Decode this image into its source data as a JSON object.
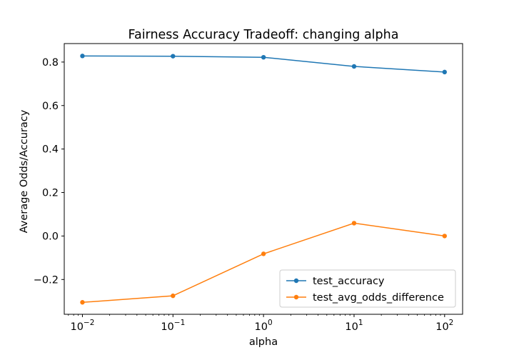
{
  "chart_data": {
    "type": "line",
    "title": "Fairness Accuracy Tradeoff: changing alpha",
    "xlabel": "alpha",
    "ylabel": "Average Odds/Accuracy",
    "x_scale": "log",
    "x": [
      0.01,
      0.1,
      1,
      10,
      100
    ],
    "x_tick_labels": [
      {
        "base": "10",
        "exp": "−2"
      },
      {
        "base": "10",
        "exp": "−1"
      },
      {
        "base": "10",
        "exp": "0"
      },
      {
        "base": "10",
        "exp": "1"
      },
      {
        "base": "10",
        "exp": "2"
      }
    ],
    "xlim": [
      0.0063,
      158
    ],
    "y_ticks": [
      -0.2,
      0.0,
      0.2,
      0.4,
      0.6,
      0.8
    ],
    "y_tick_labels": [
      "−0.2",
      "0.0",
      "0.2",
      "0.4",
      "0.6",
      "0.8"
    ],
    "ylim": [
      -0.36,
      0.885
    ],
    "grid": false,
    "legend_position": "lower-right",
    "series": [
      {
        "name": "test_accuracy",
        "color": "#1f77b4",
        "values": [
          0.828,
          0.827,
          0.822,
          0.78,
          0.754
        ]
      },
      {
        "name": "test_avg_odds_difference",
        "color": "#ff7f0e",
        "values": [
          -0.305,
          -0.275,
          -0.082,
          0.059,
          0.0
        ]
      }
    ]
  }
}
